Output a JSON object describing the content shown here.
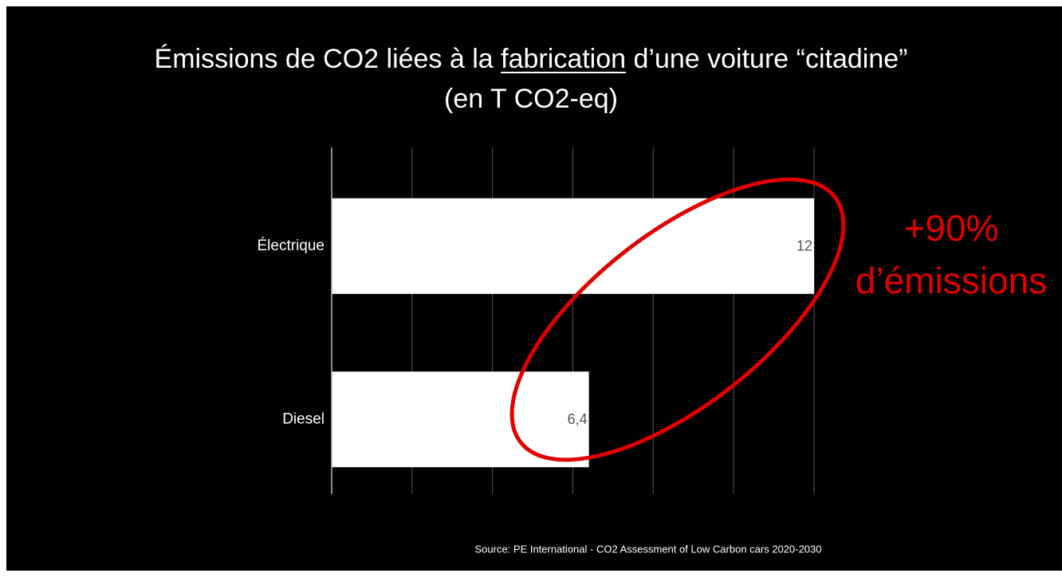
{
  "chart_data": {
    "type": "bar",
    "orientation": "horizontal",
    "title": [
      "Émissions de CO2 liées à la ",
      "fabrication",
      " d’une voiture “citadine”"
    ],
    "title_underline": 1,
    "subtitle": "(en T CO2-eq)",
    "categories": [
      "Électrique",
      "Diesel"
    ],
    "values": [
      12,
      6.4
    ],
    "value_labels": [
      "12",
      "6,4"
    ],
    "color": "#ffffff",
    "xlim": [
      0,
      12
    ],
    "xticks": [
      0,
      2,
      4,
      6,
      8,
      10,
      12
    ],
    "grid": true,
    "annotations": [
      "+90%",
      "d’émissions"
    ],
    "annotation_color": "#e00000",
    "source": "Source: PE International - CO2 Assessment of Low Carbon cars 2020-2030"
  }
}
